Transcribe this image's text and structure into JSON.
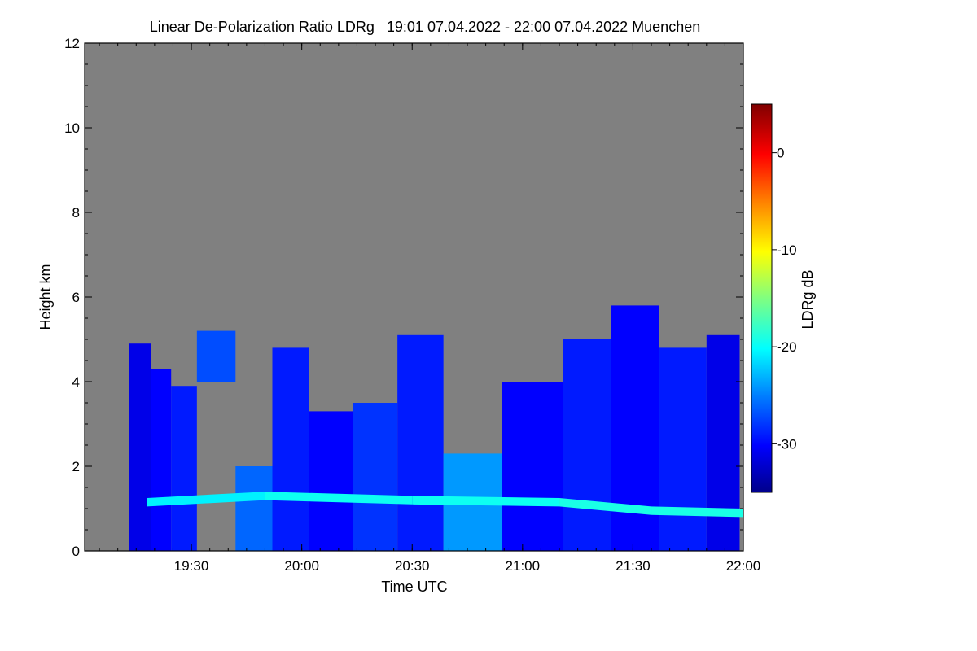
{
  "chart_data": {
    "type": "heatmap",
    "title": "Linear De-Polarization Ratio LDRg   19:01 07.04.2022 - 22:00 07.04.2022 Muenchen",
    "xlabel": "Time UTC",
    "ylabel": "Height km",
    "colorbar_label": "LDRg dB",
    "x_ticks": [
      "19:30",
      "20:00",
      "20:30",
      "21:00",
      "21:30",
      "22:00"
    ],
    "x_tick_minutes": [
      90,
      120,
      150,
      180,
      210,
      240
    ],
    "xlim_minutes": [
      61,
      240
    ],
    "y_ticks": [
      "0",
      "2",
      "4",
      "6",
      "8",
      "10",
      "12"
    ],
    "y_tick_values": [
      0,
      2,
      4,
      6,
      8,
      10,
      12
    ],
    "ylim": [
      0,
      12
    ],
    "colorbar_ticks": [
      "0",
      "-10",
      "-20",
      "-30"
    ],
    "colorbar_tick_values": [
      0,
      -10,
      -20,
      -30
    ],
    "colorbar_range": [
      -35,
      5
    ],
    "colormap": [
      "#00008b",
      "#0000ff",
      "#0080ff",
      "#00ffff",
      "#80ff80",
      "#ffff00",
      "#ff8000",
      "#ff0000",
      "#800000"
    ],
    "background_color": "#808080",
    "cloud_columns": [
      {
        "t": 76,
        "top": 4.9,
        "bottom": 0.0,
        "ldr": -31
      },
      {
        "t": 82,
        "top": 4.3,
        "bottom": 0.0,
        "ldr": -30
      },
      {
        "t": 87,
        "top": 3.9,
        "bottom": 0.0,
        "ldr": -29
      },
      {
        "t": 96,
        "top": 5.2,
        "bottom": 4.0,
        "ldr": -27
      },
      {
        "t": 108,
        "top": 2.0,
        "bottom": 0.0,
        "ldr": -26
      },
      {
        "t": 116,
        "top": 4.8,
        "bottom": 0.0,
        "ldr": -29
      },
      {
        "t": 128,
        "top": 3.3,
        "bottom": 0.0,
        "ldr": -30
      },
      {
        "t": 140,
        "top": 3.5,
        "bottom": 0.0,
        "ldr": -28
      },
      {
        "t": 152,
        "top": 5.1,
        "bottom": 0.0,
        "ldr": -29
      },
      {
        "t": 165,
        "top": 2.3,
        "bottom": 0.0,
        "ldr": -24
      },
      {
        "t": 184,
        "top": 4.0,
        "bottom": 0.0,
        "ldr": -30
      },
      {
        "t": 198,
        "top": 5.0,
        "bottom": 0.0,
        "ldr": -29
      },
      {
        "t": 210,
        "top": 5.8,
        "bottom": 0.0,
        "ldr": -30
      },
      {
        "t": 224,
        "top": 4.8,
        "bottom": 0.0,
        "ldr": -29
      },
      {
        "t": 236,
        "top": 5.1,
        "bottom": 0.0,
        "ldr": -31
      }
    ],
    "boundary_layer": [
      {
        "t": 78,
        "h": 1.15,
        "ldr": -21
      },
      {
        "t": 110,
        "h": 1.3,
        "ldr": -20
      },
      {
        "t": 150,
        "h": 1.2,
        "ldr": -19
      },
      {
        "t": 190,
        "h": 1.15,
        "ldr": -20
      },
      {
        "t": 215,
        "h": 0.95,
        "ldr": -18
      },
      {
        "t": 240,
        "h": 0.9,
        "ldr": -20
      }
    ]
  }
}
